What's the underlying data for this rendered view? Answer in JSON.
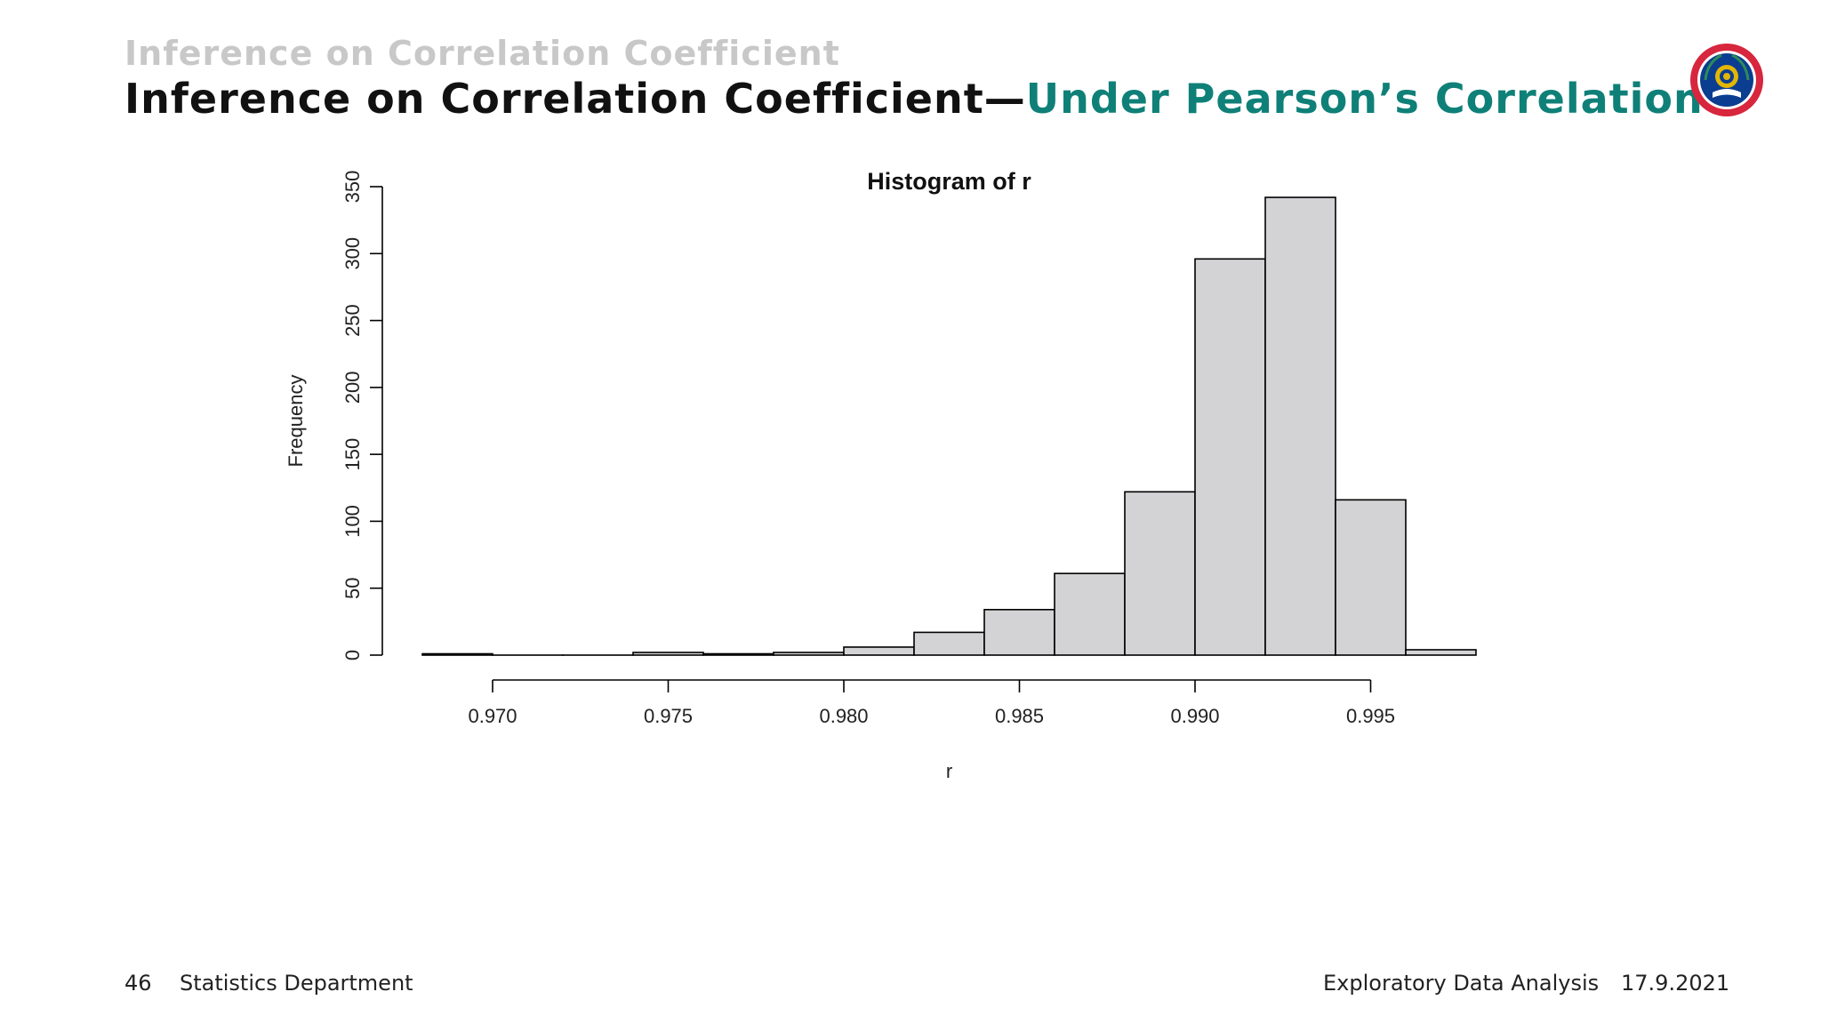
{
  "header": {
    "section_title": "Inference on Correlation Coefficient",
    "frame_title_main": "Inference on Correlation Coefficient",
    "frame_title_dash": "—",
    "frame_title_accent": "Under Pearson’s Correlation",
    "accent_color": "#0f8078"
  },
  "logo": {
    "icon": "university-seal-icon",
    "colors": {
      "ring": "#d7263d",
      "inner": "#0b3d91",
      "gold": "#e3b505"
    }
  },
  "chart_data": {
    "type": "bar",
    "title": "Histogram of r",
    "xlabel": "r",
    "ylabel": "Frequency",
    "xlim": [
      0.968,
      0.998
    ],
    "ylim": [
      0,
      350
    ],
    "x_ticks": [
      "0.970",
      "0.975",
      "0.980",
      "0.985",
      "0.990",
      "0.995"
    ],
    "x_tick_values": [
      0.97,
      0.975,
      0.98,
      0.985,
      0.99,
      0.995
    ],
    "y_ticks": [
      "0",
      "50",
      "100",
      "150",
      "200",
      "250",
      "300",
      "350"
    ],
    "y_tick_values": [
      0,
      50,
      100,
      150,
      200,
      250,
      300,
      350
    ],
    "bin_edges": [
      0.968,
      0.97,
      0.972,
      0.974,
      0.976,
      0.978,
      0.98,
      0.982,
      0.984,
      0.986,
      0.988,
      0.99,
      0.992,
      0.994,
      0.996,
      0.998
    ],
    "values": [
      1,
      0,
      0,
      2,
      1,
      2,
      6,
      17,
      34,
      61,
      122,
      296,
      342,
      116,
      4
    ],
    "bar_fill": "#d3d3d6",
    "bar_stroke": "#000000",
    "grid": false
  },
  "footer": {
    "page_number": "46",
    "department": "Statistics Department",
    "course": "Exploratory Data Analysis",
    "date": "17.9.2021"
  }
}
